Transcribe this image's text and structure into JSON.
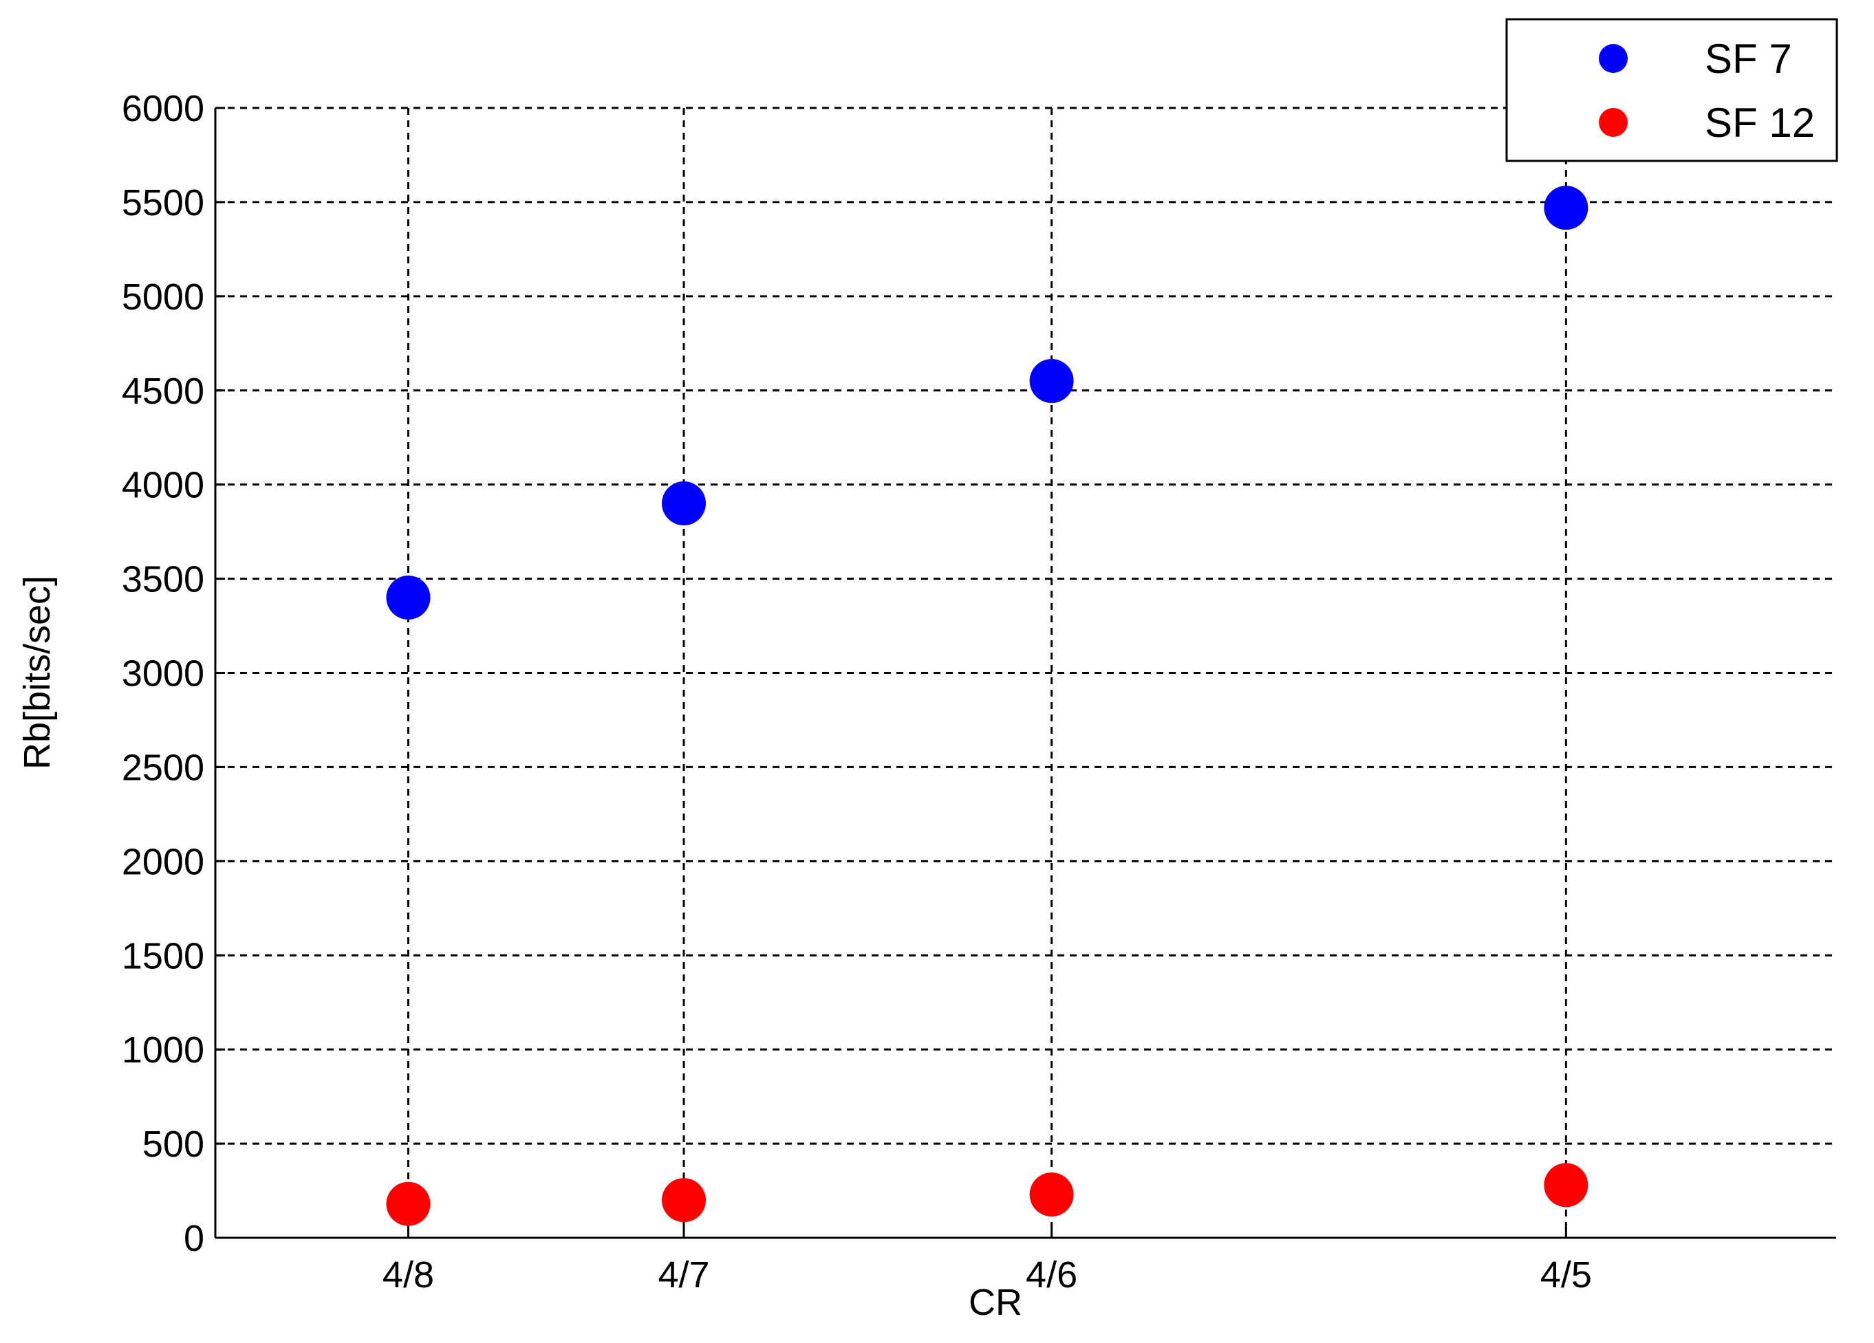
{
  "chart_data": {
    "type": "scatter",
    "title": "",
    "xlabel": "CR",
    "ylabel": "Rb[bits/sec]",
    "categories": [
      "4/8",
      "4/7",
      "4/6",
      "4/5"
    ],
    "x_numeric": [
      0.5,
      0.5714,
      0.6667,
      0.8
    ],
    "ylim": [
      0,
      6000
    ],
    "yticks": [
      "0",
      "500",
      "1000",
      "1500",
      "2000",
      "2500",
      "3000",
      "3500",
      "4000",
      "4500",
      "5000",
      "5500",
      "6000"
    ],
    "grid": true,
    "legend_position": "top-right",
    "series": [
      {
        "name": "SF 7",
        "color": "#0000ff",
        "values": [
          3400,
          3900,
          4550,
          5470
        ]
      },
      {
        "name": "SF 12",
        "color": "#ff0000",
        "values": [
          180,
          200,
          230,
          280
        ]
      }
    ]
  }
}
